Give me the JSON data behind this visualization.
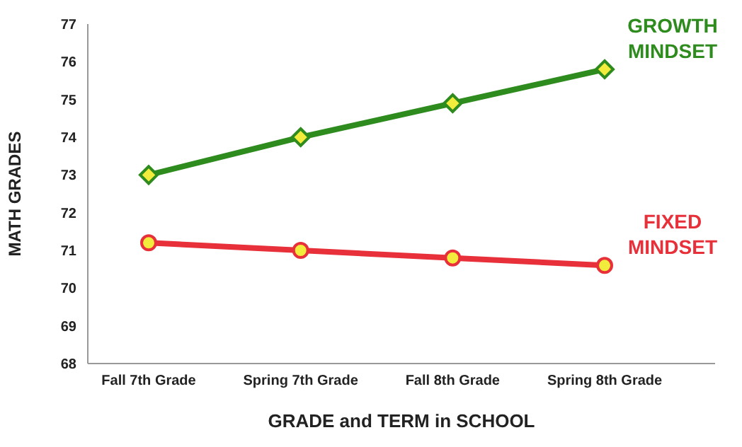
{
  "chart_data": {
    "type": "line",
    "xlabel": "GRADE and TERM in SCHOOL",
    "ylabel": "MATH GRADES",
    "categories": [
      "Fall 7th Grade",
      "Spring 7th Grade",
      "Fall 8th Grade",
      "Spring 8th Grade"
    ],
    "series": [
      {
        "name": "GROWTH MINDSET",
        "color": "#2e8b1e",
        "marker": "diamond",
        "values": [
          73,
          74,
          74.9,
          75.8
        ]
      },
      {
        "name": "FIXED MINDSET",
        "color": "#e8303a",
        "marker": "circle",
        "values": [
          71.2,
          71,
          70.8,
          70.6
        ]
      }
    ],
    "ylim": [
      68,
      77
    ],
    "yticks": [
      68,
      69,
      70,
      71,
      72,
      73,
      74,
      75,
      76,
      77
    ],
    "grid": false,
    "legend": false,
    "line_style": "solid"
  }
}
